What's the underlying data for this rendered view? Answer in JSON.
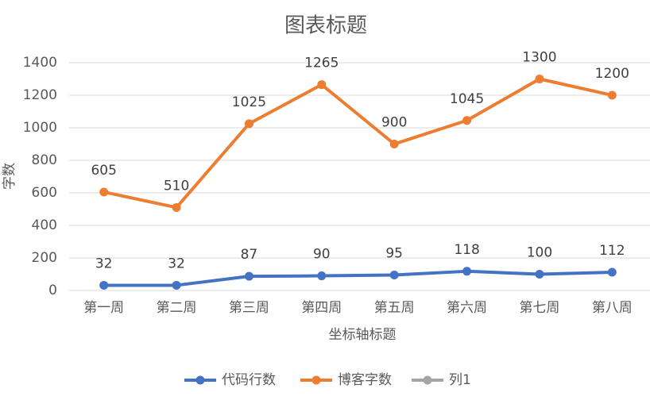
{
  "chart_data": {
    "type": "line",
    "title": "图表标题",
    "xlabel": "坐标轴标题",
    "ylabel": "字数",
    "categories": [
      "第一周",
      "第二周",
      "第三周",
      "第四周",
      "第五周",
      "第六周",
      "第七周",
      "第八周"
    ],
    "series": [
      {
        "name": "代码行数",
        "color": "#4472c4",
        "values": [
          32,
          32,
          87,
          90,
          95,
          118,
          100,
          112
        ]
      },
      {
        "name": "博客字数",
        "color": "#ed7d31",
        "values": [
          605,
          510,
          1025,
          1265,
          900,
          1045,
          1300,
          1200
        ]
      },
      {
        "name": "列1",
        "color": "#a5a5a5",
        "values": [
          null,
          null,
          null,
          null,
          null,
          null,
          null,
          null
        ]
      }
    ],
    "ylim": [
      0,
      1400
    ],
    "yticks": [
      0,
      200,
      400,
      600,
      800,
      1000,
      1200,
      1400
    ],
    "grid": true,
    "legend": "bottom"
  }
}
